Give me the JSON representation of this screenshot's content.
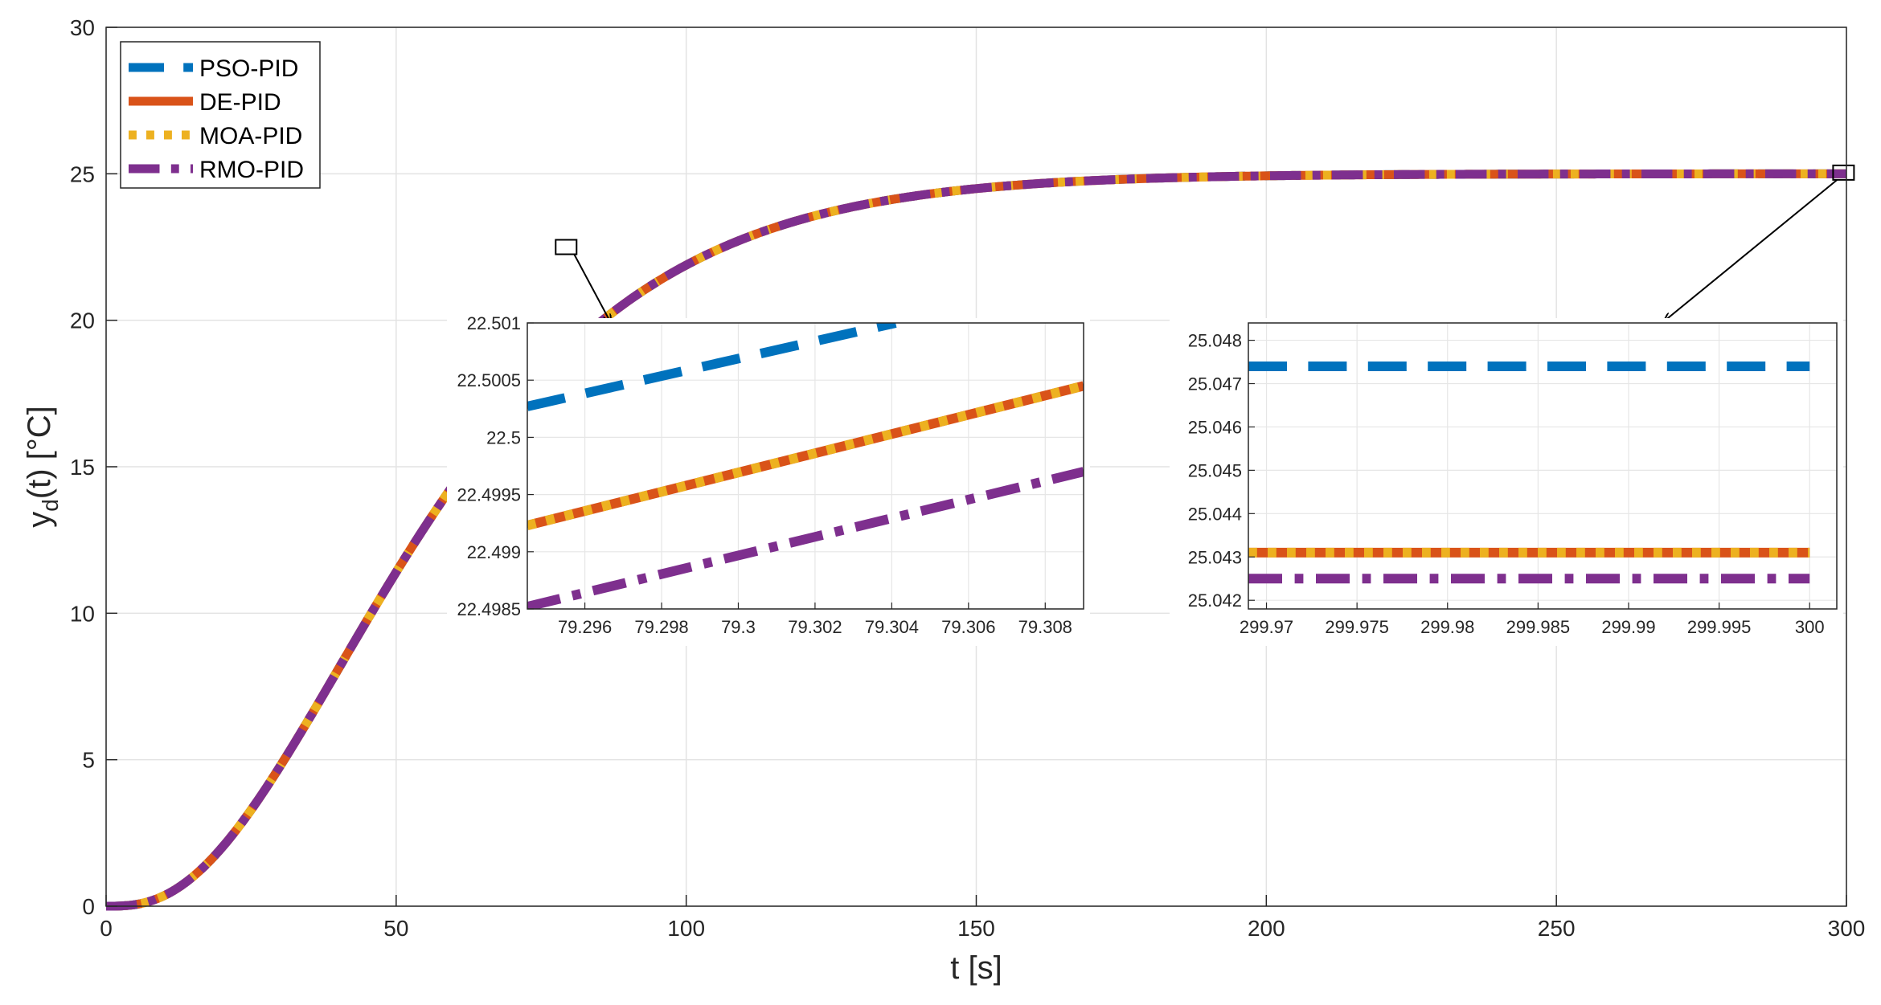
{
  "chart_data": [
    {
      "id": "main",
      "type": "line",
      "xlabel": "t [s]",
      "ylabel": "y_d(t) [°C]",
      "ylabel_main": "y",
      "ylabel_sub": "d",
      "ylabel_rest": "(t) [°C]",
      "xlim": [
        0,
        300
      ],
      "ylim": [
        0,
        30
      ],
      "xticks": [
        0,
        50,
        100,
        150,
        200,
        250,
        300
      ],
      "xtick_labels": [
        "0",
        "50",
        "100",
        "150",
        "200",
        "250",
        "300"
      ],
      "yticks": [
        0,
        5,
        10,
        15,
        20,
        25,
        30
      ],
      "ytick_labels": [
        "0",
        "5",
        "10",
        "15",
        "20",
        "25",
        "30"
      ],
      "grid": true,
      "legend_position": "top-left",
      "response_model": {
        "final_value": 25.0,
        "time_constant": 20,
        "order": 3
      },
      "series": [
        {
          "name": "PSO-PID",
          "color": "#0072BD",
          "style": "dashed"
        },
        {
          "name": "DE-PID",
          "color": "#D95319",
          "style": "solid"
        },
        {
          "name": "MOA-PID",
          "color": "#EDB120",
          "style": "dotted"
        },
        {
          "name": "RMO-PID",
          "color": "#7E2F8E",
          "style": "dash-dot"
        }
      ],
      "zoom_markers": [
        {
          "x": 79.3,
          "y": 22.5
        },
        {
          "x": 299.5,
          "y": 25.04
        }
      ]
    },
    {
      "id": "inset_left",
      "type": "line",
      "xlim": [
        79.2945,
        79.309
      ],
      "ylim": [
        22.4985,
        22.501
      ],
      "xticks": [
        79.296,
        79.298,
        79.3,
        79.302,
        79.304,
        79.306,
        79.308
      ],
      "xtick_labels": [
        "79.296",
        "79.298",
        "79.3",
        "79.302",
        "79.304",
        "79.306",
        "79.308"
      ],
      "yticks": [
        22.4985,
        22.499,
        22.4995,
        22.5,
        22.5005,
        22.501
      ],
      "ytick_labels": [
        "22.4985",
        "22.499",
        "22.4995",
        "22.5",
        "22.5005",
        "22.501"
      ],
      "grid": true,
      "series": [
        {
          "name": "PSO-PID",
          "x": [
            79.2945,
            79.3041
          ],
          "y": [
            22.50027,
            22.501
          ]
        },
        {
          "name": "DE-PID",
          "x": [
            79.2945,
            79.309
          ],
          "y": [
            22.49923,
            22.50045
          ]
        },
        {
          "name": "MOA-PID",
          "x": [
            79.2945,
            79.309
          ],
          "y": [
            22.49923,
            22.50045
          ]
        },
        {
          "name": "RMO-PID",
          "x": [
            79.2945,
            79.309
          ],
          "y": [
            22.49852,
            22.4997
          ]
        }
      ]
    },
    {
      "id": "inset_right",
      "type": "line",
      "xlim": [
        299.969,
        300.0015
      ],
      "ylim": [
        25.0418,
        25.0484
      ],
      "xticks": [
        299.97,
        299.975,
        299.98,
        299.985,
        299.99,
        299.995,
        300
      ],
      "xtick_labels": [
        "299.97",
        "299.975",
        "299.98",
        "299.985",
        "299.99",
        "299.995",
        "300"
      ],
      "yticks": [
        25.042,
        25.043,
        25.044,
        25.045,
        25.046,
        25.047,
        25.048
      ],
      "ytick_labels": [
        "25.042",
        "25.043",
        "25.044",
        "25.045",
        "25.046",
        "25.047",
        "25.048"
      ],
      "grid": true,
      "series": [
        {
          "name": "PSO-PID",
          "x": [
            299.969,
            300.0
          ],
          "y": [
            25.0474,
            25.0474
          ]
        },
        {
          "name": "DE-PID",
          "x": [
            299.969,
            300.0
          ],
          "y": [
            25.0431,
            25.0431
          ]
        },
        {
          "name": "MOA-PID",
          "x": [
            299.969,
            300.0
          ],
          "y": [
            25.0431,
            25.0431
          ]
        },
        {
          "name": "RMO-PID",
          "x": [
            299.969,
            300.0
          ],
          "y": [
            25.0425,
            25.0425
          ]
        }
      ]
    }
  ]
}
